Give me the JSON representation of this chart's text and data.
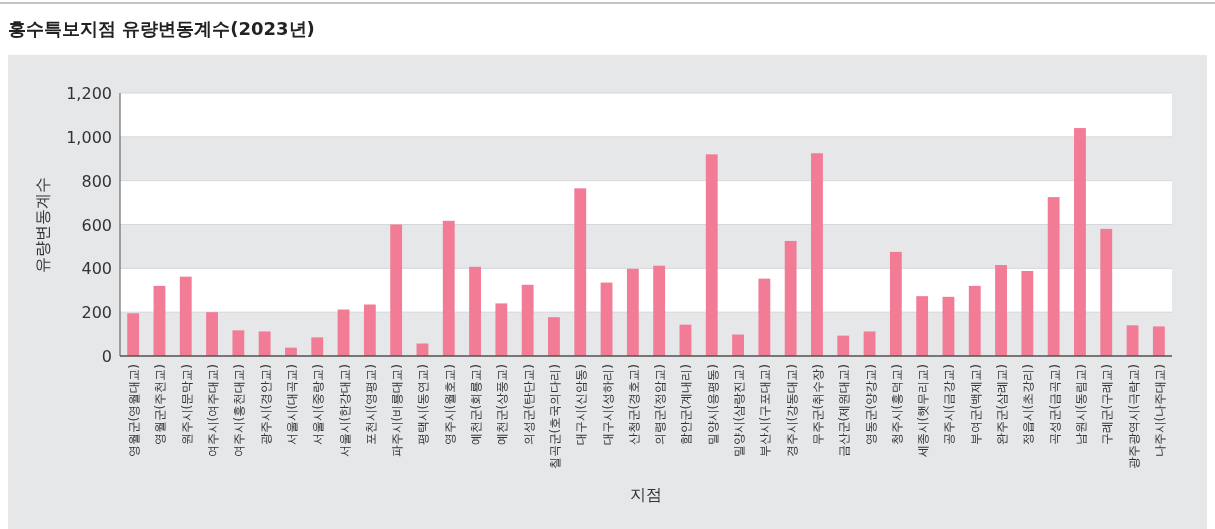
{
  "chart_data": {
    "type": "bar",
    "title": "홍수특보지점 유량변동계수(2023년)",
    "xlabel": "지점",
    "ylabel": "유량변동계수",
    "categories": [
      "영월군(영월대교)",
      "영월군(주천교)",
      "원주시(문막교)",
      "여주시(여주대교)",
      "여주시(흥천대교)",
      "광주시(경안교)",
      "서울시(대곡교)",
      "서울시(중랑교)",
      "서울시(한강대교)",
      "포천시(영평교)",
      "파주시(비룡대교)",
      "평택시(동연교)",
      "영주시(월호교)",
      "예천군(회룡교)",
      "예천군(상풍교)",
      "의성군(탄단교)",
      "칠곡군(호국의다리)",
      "대구시(신암동)",
      "대구시(성하리)",
      "산청군(경호교)",
      "의령군(정암교)",
      "함안군(계내리)",
      "밀양시(용평동)",
      "밀양시(삼랑진교)",
      "부산시(구포대교)",
      "경주시(강동대교)",
      "무주군(취수장)",
      "금산군(제원대교)",
      "영동군(양강교)",
      "청주시(흥덕교)",
      "세종시(햇무리교)",
      "공주시(금강교)",
      "부여군(백제교)",
      "완주군(삼례교)",
      "정읍시(초강리)",
      "곡성군(금곡교)",
      "남원시(동림교)",
      "구례군(구례교)",
      "광주광역시(극락교)",
      "나주시(나주대교)"
    ],
    "values": [
      195,
      320,
      362,
      200,
      117,
      112,
      38,
      85,
      212,
      235,
      600,
      57,
      617,
      407,
      240,
      325,
      177,
      765,
      335,
      398,
      412,
      143,
      920,
      98,
      353,
      525,
      925,
      93,
      112,
      475,
      273,
      270,
      320,
      415,
      388,
      725,
      1040,
      580,
      140,
      135
    ],
    "color": "#f27b96",
    "ylim": [
      0,
      1200
    ],
    "yticks": [
      0,
      200,
      400,
      600,
      800,
      {
        "value": 1000,
        "label": "1,000"
      },
      {
        "value": 1200,
        "label": "1,200"
      }
    ],
    "grid": "y"
  }
}
